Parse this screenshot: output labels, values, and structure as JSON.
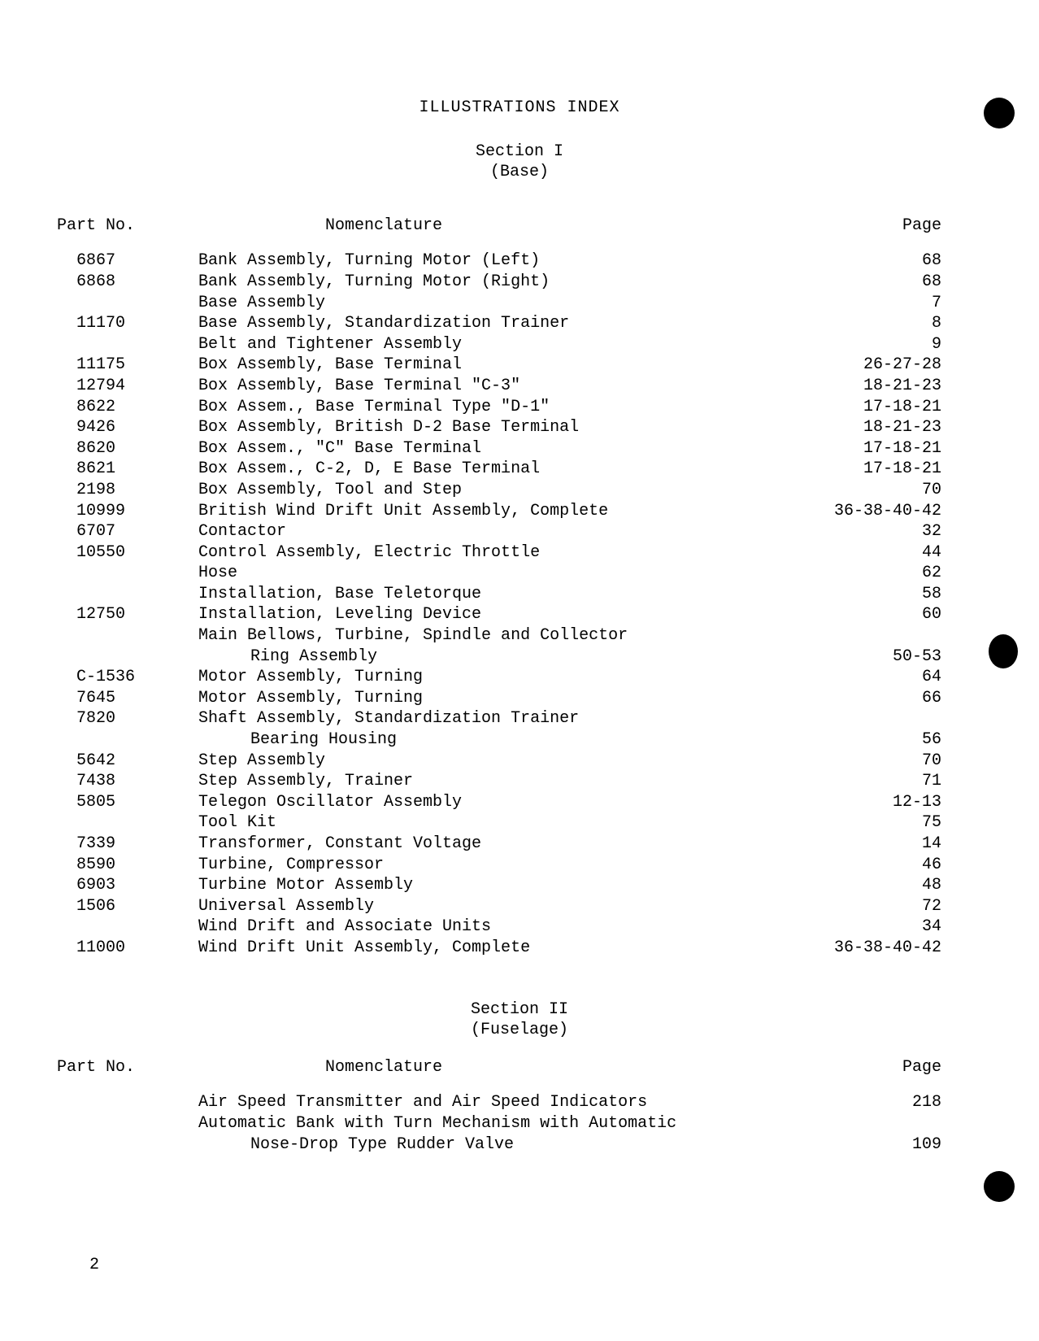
{
  "document": {
    "main_title": "ILLUSTRATIONS INDEX",
    "page_number": "2",
    "section1": {
      "heading_line1": "Section  I",
      "heading_line2": "(Base)",
      "col_part": "Part No.",
      "col_nom": "Nomenclature",
      "col_page": "Page",
      "rows": [
        {
          "part": "6867",
          "nom": "Bank Assembly, Turning Motor (Left)",
          "page": "68"
        },
        {
          "part": "6868",
          "nom": "Bank Assembly, Turning Motor (Right)",
          "page": "68"
        },
        {
          "part": "",
          "nom": "Base Assembly",
          "page": "7"
        },
        {
          "part": "11170",
          "nom": "Base Assembly, Standardization Trainer",
          "page": "8"
        },
        {
          "part": "",
          "nom": "Belt and Tightener Assembly",
          "page": "9"
        },
        {
          "part": "11175",
          "nom": "Box Assembly, Base Terminal",
          "page": "26-27-28"
        },
        {
          "part": "12794",
          "nom": "Box Assembly, Base Terminal \"C-3\"",
          "page": "18-21-23"
        },
        {
          "part": "8622",
          "nom": "Box Assem., Base Terminal Type \"D-1\"",
          "page": "17-18-21"
        },
        {
          "part": "9426",
          "nom": "Box Assembly, British D-2 Base Terminal",
          "page": "18-21-23"
        },
        {
          "part": "8620",
          "nom": "Box Assem., \"C\" Base Terminal",
          "page": "17-18-21"
        },
        {
          "part": "8621",
          "nom": "Box Assem., C-2, D, E Base Terminal",
          "page": "17-18-21"
        },
        {
          "part": "2198",
          "nom": "Box Assembly, Tool and Step",
          "page": "70"
        },
        {
          "part": "10999",
          "nom": "British Wind Drift Unit Assembly, Complete",
          "page": "36-38-40-42"
        },
        {
          "part": "6707",
          "nom": "Contactor",
          "page": "32"
        },
        {
          "part": "10550",
          "nom": "Control Assembly, Electric Throttle",
          "page": "44"
        },
        {
          "part": "",
          "nom": "Hose",
          "page": "62"
        },
        {
          "part": "",
          "nom": "Installation, Base Teletorque",
          "page": "58"
        },
        {
          "part": "12750",
          "nom": "Installation, Leveling Device",
          "page": "60"
        },
        {
          "part": "",
          "nom": "Main Bellows, Turbine, Spindle and Collector",
          "page": ""
        },
        {
          "part": "",
          "nom": "Ring Assembly",
          "page": "50-53",
          "indent": true
        },
        {
          "part": "C-1536",
          "nom": "Motor Assembly, Turning",
          "page": "64"
        },
        {
          "part": "7645",
          "nom": "Motor Assembly, Turning",
          "page": "66"
        },
        {
          "part": "7820",
          "nom": "Shaft Assembly, Standardization Trainer",
          "page": ""
        },
        {
          "part": "",
          "nom": "Bearing Housing",
          "page": "56",
          "indent": true
        },
        {
          "part": "5642",
          "nom": "Step Assembly",
          "page": "70"
        },
        {
          "part": "7438",
          "nom": "Step Assembly, Trainer",
          "page": "71"
        },
        {
          "part": "5805",
          "nom": "Telegon Oscillator Assembly",
          "page": "12-13"
        },
        {
          "part": "",
          "nom": "Tool Kit",
          "page": "75"
        },
        {
          "part": "7339",
          "nom": "Transformer, Constant Voltage",
          "page": "14"
        },
        {
          "part": "8590",
          "nom": "Turbine, Compressor",
          "page": "46"
        },
        {
          "part": "6903",
          "nom": "Turbine Motor Assembly",
          "page": "48"
        },
        {
          "part": "1506",
          "nom": "Universal Assembly",
          "page": "72"
        },
        {
          "part": "",
          "nom": "Wind Drift and Associate Units",
          "page": "34"
        },
        {
          "part": "11000",
          "nom": "Wind Drift Unit Assembly, Complete",
          "page": "36-38-40-42"
        }
      ]
    },
    "section2": {
      "heading_line1": "Section II",
      "heading_line2": "(Fuselage)",
      "col_part": "Part No.",
      "col_nom": "Nomenclature",
      "col_page": "Page",
      "rows": [
        {
          "part": "",
          "nom": "Air Speed Transmitter and Air Speed Indicators",
          "page": "218"
        },
        {
          "part": "",
          "nom": "Automatic Bank with Turn Mechanism with Automatic",
          "page": ""
        },
        {
          "part": "",
          "nom": "Nose-Drop Type Rudder Valve",
          "page": "109",
          "indent": true
        }
      ]
    }
  }
}
